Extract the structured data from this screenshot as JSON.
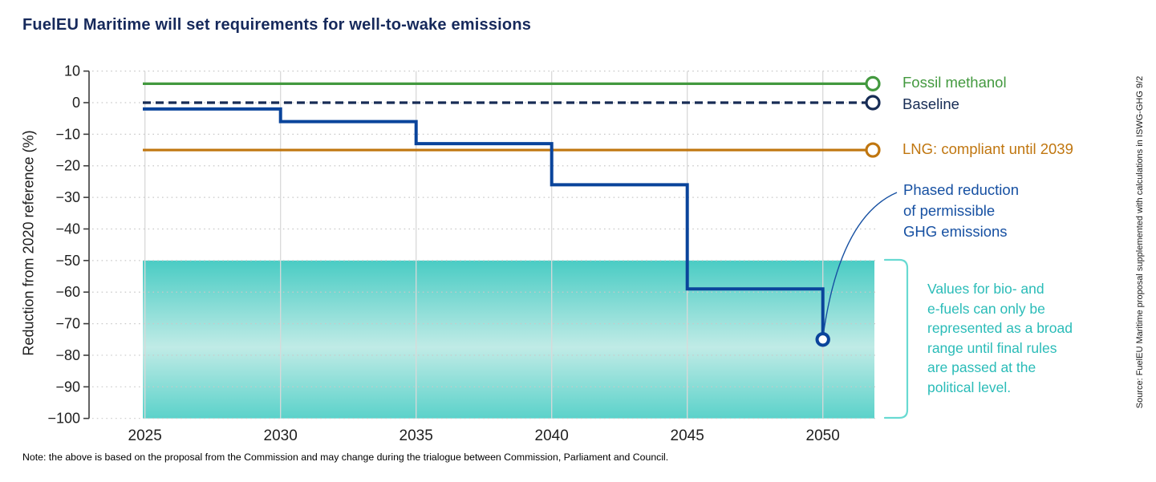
{
  "title": "FuelEU Maritime will set requirements for well-to-wake emissions",
  "note": "Note: the above is based on the proposal from the Commission and may change during the trialogue between Commission, Parliament and Council.",
  "source": "Source: FuelEU Maritime proposal supplemented with calculations in ISWG-GHG 9/2",
  "colors": {
    "title_navy": "#16295b",
    "green": "#43993f",
    "navy": "#172c55",
    "orange": "#c0760f",
    "royal_blue": "#0a449b",
    "annotation_blue": "#1650a2",
    "teal_text": "#2abcb8",
    "bracket_teal": "#68dad2",
    "gridline_gray": "#d9d9d9",
    "dotted_gray": "#c9c9c9",
    "axis_dark": "#3c3c3c",
    "tick_label": "#1f1f1f"
  },
  "annotations": {
    "phased": "Phased reduction\nof permissible\nGHG emissions",
    "band_note": "Values for bio- and\ne-fuels can only be\nrepresented as a broad\nrange until final rules\nare passed at the\npolitical level."
  },
  "chart_data": {
    "type": "line",
    "title": "FuelEU Maritime will set requirements for well-to-wake emissions",
    "xlabel": "",
    "ylabel": "Reduction from 2020 reference (%)",
    "ylim": [
      -100,
      10
    ],
    "xlim": [
      2024.9,
      2052
    ],
    "x_ticks": [
      2025,
      2030,
      2035,
      2040,
      2045,
      2050
    ],
    "y_ticks": [
      10,
      0,
      -10,
      -20,
      -30,
      -40,
      -50,
      -60,
      -70,
      -80,
      -90,
      -100
    ],
    "grid": "vertical solid at year ticks, horizontal dotted at 10% steps",
    "legend_position": "labels at right ends of lines with open-circle end markers",
    "series": [
      {
        "name": "Fossil methanol",
        "type": "line",
        "style": "solid",
        "color": "#43993f",
        "value": 6
      },
      {
        "name": "Baseline",
        "type": "line",
        "style": "dashed",
        "color": "#172c55",
        "value": 0
      },
      {
        "name": "LNG: compliant until 2039",
        "type": "line",
        "style": "solid",
        "color": "#c0760f",
        "value": -15
      },
      {
        "name": "Phased reduction of permissible GHG emissions",
        "type": "step",
        "style": "solid",
        "color": "#0a449b",
        "steps": [
          [
            2025,
            -2
          ],
          [
            2030,
            -6
          ],
          [
            2035,
            -13
          ],
          [
            2040,
            -26
          ],
          [
            2045,
            -59
          ],
          [
            2050,
            -75
          ]
        ]
      }
    ],
    "band": {
      "label": "Values for bio- and e-fuels can only be represented as a broad range until final rules are passed at the political level.",
      "y_range": [
        -50,
        -100
      ],
      "x_range": [
        2025,
        2052
      ],
      "gradient": [
        "#4accc4",
        "#c0ebe6",
        "#5bd2ca"
      ]
    }
  }
}
